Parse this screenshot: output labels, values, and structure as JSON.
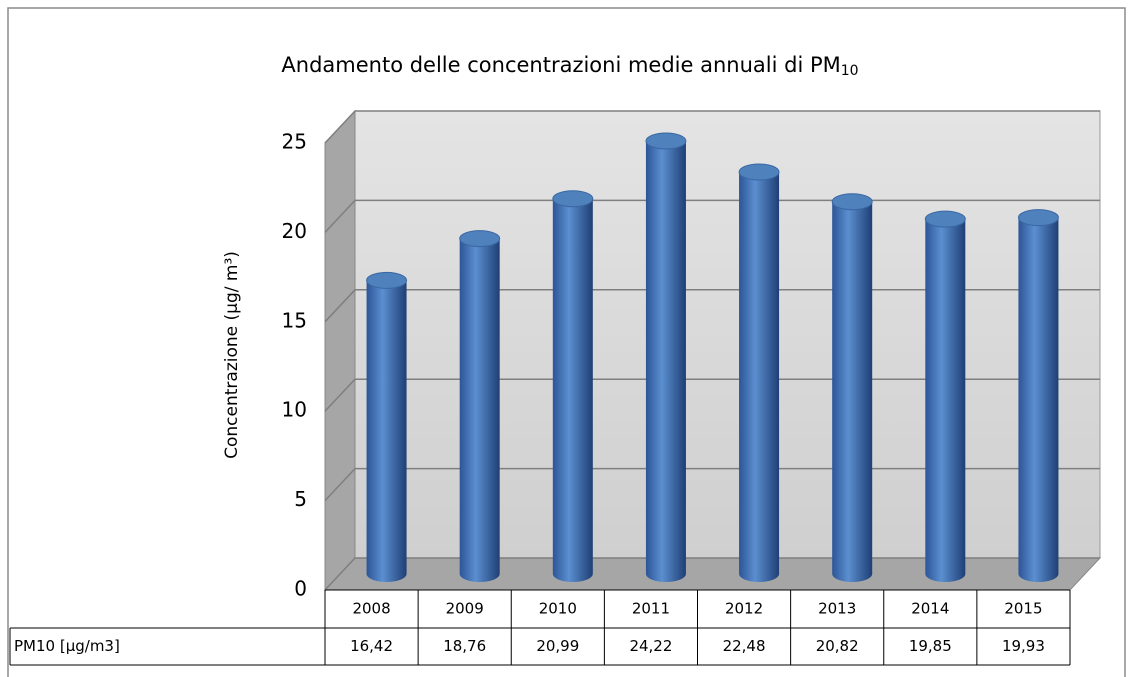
{
  "chart_data": {
    "type": "bar",
    "title": [
      "Andamento delle concentrazioni medie annuali di PM",
      "10"
    ],
    "y_axis_label": "Concentrazione (µg/ m³)",
    "categories": [
      "2008",
      "2009",
      "2010",
      "2011",
      "2012",
      "2013",
      "2014",
      "2015"
    ],
    "series": [
      {
        "name": "PM10 [µg/m3]",
        "color": "#4f81bd",
        "values": [
          16.42,
          18.76,
          20.99,
          24.22,
          22.48,
          20.82,
          19.85,
          19.93
        ],
        "value_labels": [
          "16,42",
          "18,76",
          "20,99",
          "24,22",
          "22,48",
          "20,82",
          "19,85",
          "19,93"
        ]
      }
    ],
    "ylim": [
      0,
      25
    ],
    "yticks": [
      0,
      5,
      10,
      15,
      20,
      25
    ],
    "grid": true
  }
}
